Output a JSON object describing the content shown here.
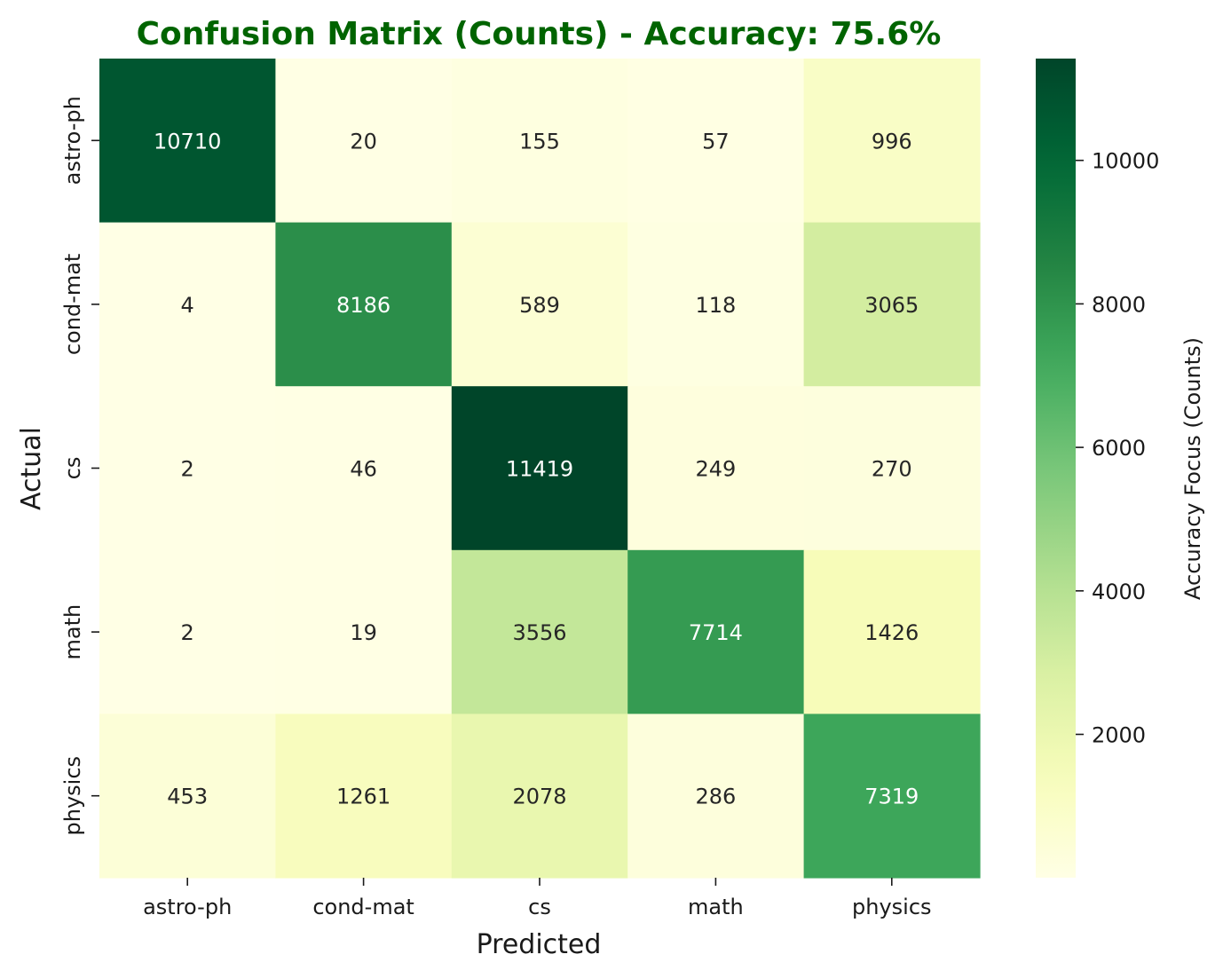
{
  "chart_data": {
    "type": "heatmap",
    "title": "Confusion Matrix (Counts) - Accuracy: 75.6%",
    "xlabel": "Predicted",
    "ylabel": "Actual",
    "x_categories": [
      "astro-ph",
      "cond-mat",
      "cs",
      "math",
      "physics"
    ],
    "y_categories": [
      "astro-ph",
      "cond-mat",
      "cs",
      "math",
      "physics"
    ],
    "values": [
      [
        10710,
        20,
        155,
        57,
        996
      ],
      [
        4,
        8186,
        589,
        118,
        3065
      ],
      [
        2,
        46,
        11419,
        249,
        270
      ],
      [
        2,
        19,
        3556,
        7714,
        1426
      ],
      [
        453,
        1261,
        2078,
        286,
        7319
      ]
    ],
    "colorbar": {
      "label": "Accuracy Focus (Counts)",
      "range": [
        2,
        11419
      ],
      "ticks": [
        2000,
        4000,
        6000,
        8000,
        10000
      ],
      "colormap": "YlGn"
    },
    "colors": {
      "title": "#006400"
    }
  }
}
